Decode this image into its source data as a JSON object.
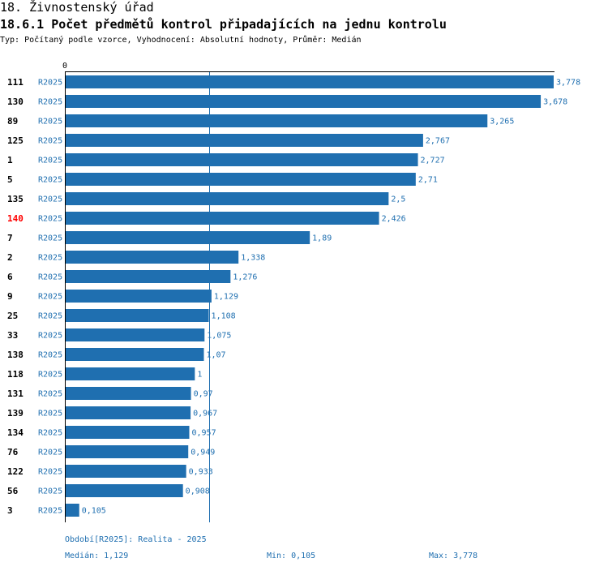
{
  "header": {
    "title": "18. Živnostenský úřad",
    "subtitle": "18.6.1 Počet předmětů kontrol připadajících na jednu kontrolu",
    "typeline": "Typ: Počítaný podle vzorce, Vyhodnocení: Absolutní hodnoty, Průměr: Medián"
  },
  "colors": {
    "bar": "#1f6fb0",
    "label": "#1f6fb0",
    "highlight": "#ff0000",
    "axis": "#000000"
  },
  "chart_data": {
    "type": "bar",
    "orientation": "horizontal",
    "x_zero_label": "0",
    "xlim": [
      0,
      3.778
    ],
    "median_value": 1.129,
    "highlight_category": "140",
    "series_label": "R2025",
    "categories": [
      "111",
      "130",
      "89",
      "125",
      "1",
      "5",
      "135",
      "140",
      "7",
      "2",
      "6",
      "9",
      "25",
      "33",
      "138",
      "118",
      "131",
      "139",
      "134",
      "76",
      "122",
      "56",
      "3"
    ],
    "values": [
      3.778,
      3.678,
      3.265,
      2.767,
      2.727,
      2.71,
      2.5,
      2.426,
      1.89,
      1.338,
      1.276,
      1.129,
      1.108,
      1.075,
      1.07,
      1,
      0.97,
      0.967,
      0.957,
      0.949,
      0.933,
      0.908,
      0.105
    ],
    "value_labels": [
      "3,778",
      "3,678",
      "3,265",
      "2,767",
      "2,727",
      "2,71",
      "2,5",
      "2,426",
      "1,89",
      "1,338",
      "1,276",
      "1,129",
      "1,108",
      "1,075",
      "1,07",
      "1",
      "0,97",
      "0,967",
      "0,957",
      "0,949",
      "0,933",
      "0,908",
      "0,105"
    ]
  },
  "footer": {
    "period": "Období[R2025]: Realita - 2025",
    "median": "Medián: 1,129",
    "min": "Min: 0,105",
    "max": "Max: 3,778"
  }
}
